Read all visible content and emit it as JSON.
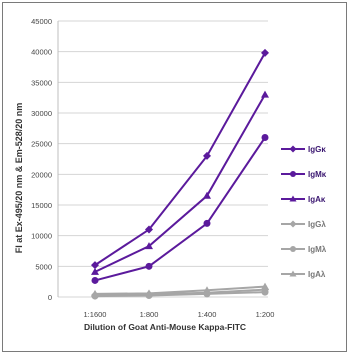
{
  "chart_data": {
    "type": "line",
    "xlabel": "Dilution of Goat Anti-Mouse Kappa-FITC",
    "ylabel": "FI at Ex-495/20 nm & Em-528/20 nm",
    "categories": [
      "1:1600",
      "1:800",
      "1:400",
      "1:200"
    ],
    "ylim": [
      0,
      45000
    ],
    "yticks": [
      "0",
      "5000",
      "10000",
      "15000",
      "20000",
      "25000",
      "30000",
      "35000",
      "40000",
      "45000"
    ],
    "grid": true,
    "legend_position": "right",
    "series": [
      {
        "name": "IgGκ",
        "values": [
          5200,
          11000,
          23000,
          39800
        ],
        "color": "#5b1a9c",
        "marker": "diamond"
      },
      {
        "name": "IgMκ",
        "values": [
          2700,
          5000,
          12000,
          26000
        ],
        "color": "#5b1a9c",
        "marker": "circle"
      },
      {
        "name": "IgAκ",
        "values": [
          4100,
          8300,
          16500,
          33000
        ],
        "color": "#5b1a9c",
        "marker": "triangle"
      },
      {
        "name": "IgGλ",
        "values": [
          300,
          450,
          700,
          1200
        ],
        "color": "#a6a6a6",
        "marker": "diamond"
      },
      {
        "name": "IgMλ",
        "values": [
          150,
          250,
          500,
          800
        ],
        "color": "#a6a6a6",
        "marker": "circle"
      },
      {
        "name": "IgAλ",
        "values": [
          500,
          600,
          1100,
          1700
        ],
        "color": "#a6a6a6",
        "marker": "triangle"
      }
    ]
  }
}
